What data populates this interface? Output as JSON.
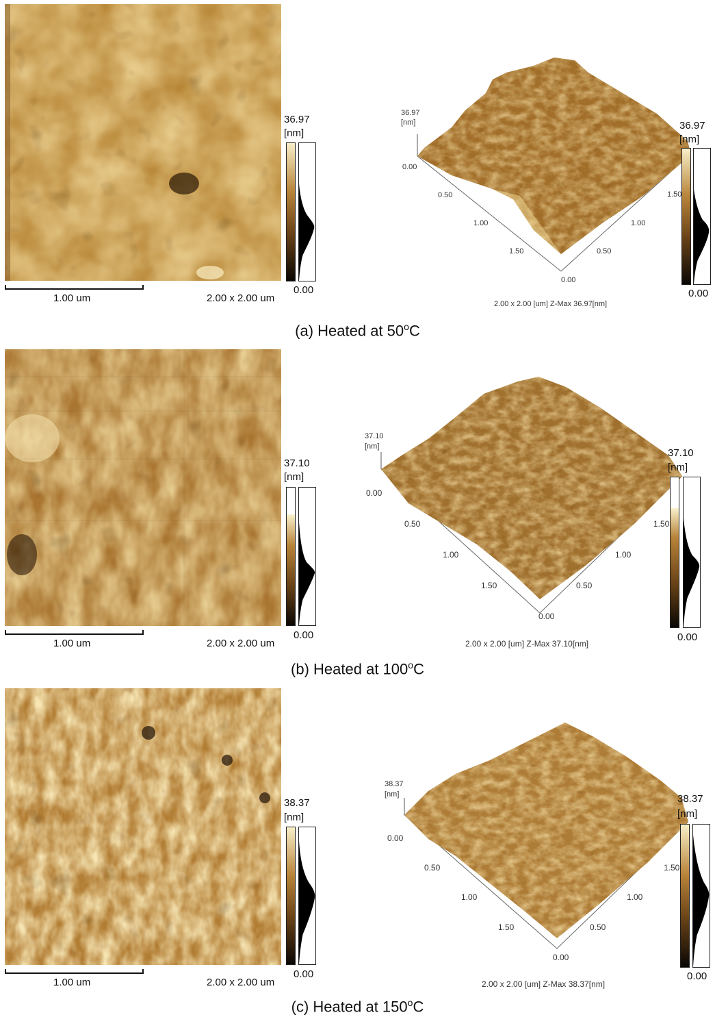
{
  "panels": [
    {
      "id": "a",
      "caption": "(a) Heated at 50",
      "caption_unit": "C",
      "scale_bar_label": "1.00 um",
      "scan_size": "2.00 x 2.00 um",
      "z_max": "36.97",
      "z_unit": "[nm]",
      "z_min": "0.00",
      "plot3d": {
        "z_max": "36.97",
        "z_unit": "[nm]",
        "z_min": "0.00",
        "x_ticks": [
          "0.50",
          "1.00",
          "1.50"
        ],
        "y_ticks": [
          "1.50",
          "1.00",
          "0.50"
        ],
        "origin": "0.00",
        "footer": "2.00 x 2.00 [um]  Z-Max 36.97[nm]"
      }
    },
    {
      "id": "b",
      "caption": "(b) Heated at 100",
      "caption_unit": "C",
      "scale_bar_label": "1.00 um",
      "scan_size": "2.00 x 2.00 um",
      "z_max": "37.10",
      "z_unit": "[nm]",
      "z_min": "0.00",
      "plot3d": {
        "z_max": "37.10",
        "z_unit": "[nm]",
        "z_min": "0.00",
        "x_ticks": [
          "0.50",
          "1.00",
          "1.50"
        ],
        "y_ticks": [
          "1.50",
          "1.00",
          "0.50"
        ],
        "origin": "0.00",
        "footer": "2.00 x 2.00 [um]  Z-Max 37.10[nm]"
      }
    },
    {
      "id": "c",
      "caption": "(c) Heated at 150",
      "caption_unit": "C",
      "scale_bar_label": "1.00 um",
      "scan_size": "2.00 x 2.00 um",
      "z_max": "38.37",
      "z_unit": "[nm]",
      "z_min": "0.00",
      "plot3d": {
        "z_max": "38.37",
        "z_unit": "[nm]",
        "z_min": "0.00",
        "x_ticks": [
          "0.50",
          "1.00",
          "1.50"
        ],
        "y_ticks": [
          "1.50",
          "1.00",
          "0.50"
        ],
        "origin": "0.00",
        "footer": "2.00 x 2.00 [um]  Z-Max 38.37[nm]"
      }
    }
  ],
  "colors": {
    "afm_dark": "#3a2410",
    "afm_mid": "#b5802f",
    "afm_light": "#f6e6b4"
  }
}
